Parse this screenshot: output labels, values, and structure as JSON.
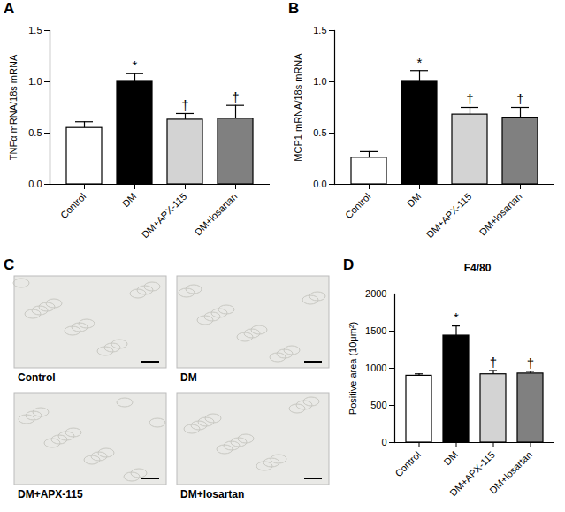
{
  "chart_data": [
    {
      "type": "bar",
      "panel": "A",
      "y_label": "TNFα mRNA/18s mRNA",
      "categories": [
        "Control",
        "DM",
        "DM+APX-115",
        "DM+losartan"
      ],
      "values": [
        0.55,
        1.0,
        0.63,
        0.64
      ],
      "errors": [
        0.06,
        0.08,
        0.06,
        0.13
      ],
      "significance": [
        null,
        "*",
        "†",
        "†"
      ],
      "colors": [
        "#ffffff",
        "#000000",
        "#d3d3d3",
        "#808080"
      ],
      "ylim": [
        0,
        1.5
      ],
      "yticks": [
        {
          "value": 0,
          "label": "0.0"
        },
        {
          "value": 0.5,
          "label": "0.5"
        },
        {
          "value": 1,
          "label": "1.0"
        },
        {
          "value": 1.5,
          "label": "1.5"
        }
      ]
    },
    {
      "type": "bar",
      "panel": "B",
      "y_label": "MCP1 mRNA/18s mRNA",
      "categories": [
        "Control",
        "DM",
        "DM+APX-115",
        "DM+losartan"
      ],
      "values": [
        0.26,
        1.0,
        0.68,
        0.65
      ],
      "errors": [
        0.06,
        0.11,
        0.07,
        0.1
      ],
      "significance": [
        null,
        "*",
        "†",
        "†"
      ],
      "colors": [
        "#ffffff",
        "#000000",
        "#d3d3d3",
        "#808080"
      ],
      "ylim": [
        0,
        1.5
      ],
      "yticks": [
        {
          "value": 0,
          "label": "0.0"
        },
        {
          "value": 0.5,
          "label": "0.5"
        },
        {
          "value": 1,
          "label": "1.0"
        },
        {
          "value": 1.5,
          "label": "1.5"
        }
      ]
    },
    {
      "type": "image_grid",
      "panel": "C",
      "labels": [
        "Control",
        "DM",
        "DM+APX-115",
        "DM+losartan"
      ]
    },
    {
      "type": "bar",
      "panel": "D",
      "title": "F4/80",
      "y_label": "Positive area (10μm²)",
      "categories": [
        "Control",
        "DM",
        "DM+APX-115",
        "DM+losartan"
      ],
      "values": [
        900,
        1440,
        920,
        930
      ],
      "errors": [
        25,
        130,
        50,
        30
      ],
      "significance": [
        null,
        "*",
        "†",
        "†"
      ],
      "colors": [
        "#ffffff",
        "#000000",
        "#d3d3d3",
        "#808080"
      ],
      "ylim": [
        0,
        2000
      ],
      "yticks": [
        0,
        500,
        1000,
        1500,
        2000
      ]
    }
  ]
}
